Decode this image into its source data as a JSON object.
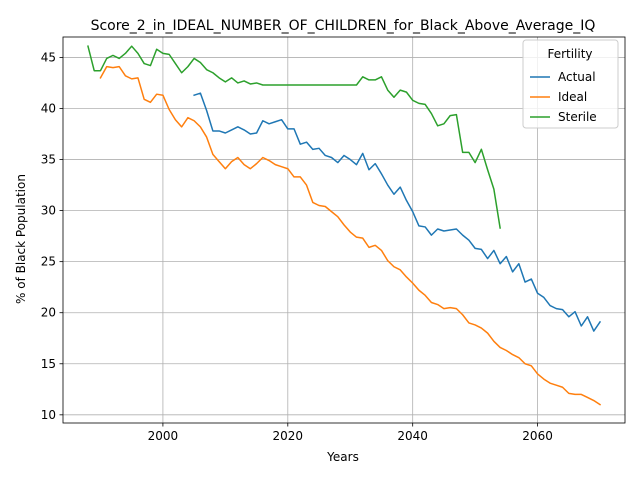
{
  "chart_data": {
    "type": "line",
    "title": "Score_2_in_IDEAL_NUMBER_OF_CHILDREN_for_Black_Above_Average_IQ",
    "xlabel": "Years",
    "ylabel": "% of Black Population",
    "xlim": [
      1984,
      2074
    ],
    "ylim": [
      9.2,
      47.0
    ],
    "xticks": [
      2000,
      2020,
      2040,
      2060
    ],
    "yticks": [
      10,
      15,
      20,
      25,
      30,
      35,
      40,
      45
    ],
    "grid": true,
    "legend": {
      "title": "Fertility",
      "placement": "top-right"
    },
    "series": [
      {
        "name": "Actual",
        "color": "#1f77b4",
        "x": [
          2005,
          2006,
          2007,
          2008,
          2009,
          2010,
          2011,
          2012,
          2013,
          2014,
          2015,
          2016,
          2017,
          2018,
          2019,
          2020,
          2021,
          2022,
          2023,
          2024,
          2025,
          2026,
          2027,
          2028,
          2029,
          2030,
          2031,
          2032,
          2033,
          2034,
          2035,
          2036,
          2037,
          2038,
          2039,
          2040,
          2041,
          2042,
          2043,
          2044,
          2045,
          2046,
          2047,
          2048,
          2049,
          2050,
          2051,
          2052,
          2053,
          2054,
          2055,
          2056,
          2057,
          2058,
          2059,
          2060,
          2061,
          2062,
          2063,
          2064,
          2065,
          2066,
          2067,
          2068,
          2069,
          2070
        ],
        "y": [
          41.3,
          41.5,
          39.8,
          37.8,
          37.8,
          37.6,
          37.9,
          38.2,
          37.9,
          37.5,
          37.6,
          38.8,
          38.5,
          38.7,
          38.9,
          38.0,
          38.0,
          36.5,
          36.7,
          36.0,
          36.1,
          35.4,
          35.2,
          34.7,
          35.4,
          35.0,
          34.5,
          35.6,
          34.0,
          34.6,
          33.6,
          32.5,
          31.6,
          32.3,
          31.0,
          29.9,
          28.5,
          28.4,
          27.6,
          28.2,
          28.0,
          28.1,
          28.2,
          27.6,
          27.1,
          26.3,
          26.2,
          25.3,
          26.1,
          24.8,
          25.5,
          24.0,
          24.8,
          23.0,
          23.3,
          21.9,
          21.5,
          20.7,
          20.4,
          20.3,
          19.6,
          20.1,
          18.7,
          19.6,
          18.2,
          19.1
        ]
      },
      {
        "name": "Ideal",
        "color": "#ff7f0e",
        "x": [
          1990,
          1991,
          1992,
          1993,
          1994,
          1995,
          1996,
          1997,
          1998,
          1999,
          2000,
          2001,
          2002,
          2003,
          2004,
          2005,
          2006,
          2007,
          2008,
          2009,
          2010,
          2011,
          2012,
          2013,
          2014,
          2015,
          2016,
          2017,
          2018,
          2019,
          2020,
          2021,
          2022,
          2023,
          2024,
          2025,
          2026,
          2027,
          2028,
          2029,
          2030,
          2031,
          2032,
          2033,
          2034,
          2035,
          2036,
          2037,
          2038,
          2039,
          2040,
          2041,
          2042,
          2043,
          2044,
          2045,
          2046,
          2047,
          2048,
          2049,
          2050,
          2051,
          2052,
          2053,
          2054,
          2055,
          2056,
          2057,
          2058,
          2059,
          2060,
          2061,
          2062,
          2063,
          2064,
          2065,
          2066,
          2067,
          2068,
          2069,
          2070
        ],
        "y": [
          43.0,
          44.1,
          44.0,
          44.1,
          43.2,
          42.9,
          43.0,
          40.9,
          40.6,
          41.4,
          41.3,
          39.9,
          38.9,
          38.2,
          39.1,
          38.8,
          38.2,
          37.2,
          35.5,
          34.8,
          34.1,
          34.8,
          35.2,
          34.5,
          34.1,
          34.6,
          35.2,
          34.9,
          34.5,
          34.3,
          34.1,
          33.3,
          33.3,
          32.5,
          30.8,
          30.5,
          30.4,
          29.9,
          29.4,
          28.6,
          27.9,
          27.4,
          27.3,
          26.4,
          26.6,
          26.1,
          25.1,
          24.5,
          24.2,
          23.5,
          22.9,
          22.2,
          21.7,
          21.0,
          20.8,
          20.4,
          20.5,
          20.4,
          19.8,
          19.0,
          18.8,
          18.5,
          18.0,
          17.2,
          16.6,
          16.3,
          15.9,
          15.6,
          15.0,
          14.8,
          14.0,
          13.5,
          13.1,
          12.9,
          12.7,
          12.1,
          12.0,
          12.0,
          11.7,
          11.4,
          11.0
        ]
      },
      {
        "name": "Sterile",
        "color": "#2ca02c",
        "x": [
          1988,
          1989,
          1990,
          1991,
          1992,
          1993,
          1994,
          1995,
          1996,
          1997,
          1998,
          1999,
          2000,
          2001,
          2002,
          2003,
          2004,
          2005,
          2006,
          2007,
          2008,
          2009,
          2010,
          2011,
          2012,
          2013,
          2014,
          2015,
          2016,
          2017,
          2018,
          2019,
          2020,
          2021,
          2022,
          2023,
          2024,
          2025,
          2026,
          2027,
          2028,
          2029,
          2030,
          2031,
          2032,
          2033,
          2034,
          2035,
          2036,
          2037,
          2038,
          2039,
          2040,
          2041,
          2042,
          2043,
          2044,
          2045,
          2046,
          2047,
          2048,
          2049,
          2050,
          2051,
          2052,
          2053,
          2054
        ],
        "y": [
          46.1,
          43.7,
          43.7,
          44.9,
          45.2,
          44.9,
          45.4,
          46.1,
          45.4,
          44.4,
          44.2,
          45.8,
          45.4,
          45.3,
          44.4,
          43.5,
          44.1,
          44.9,
          44.5,
          43.8,
          43.5,
          43.0,
          42.6,
          43.0,
          42.5,
          42.7,
          42.4,
          42.5,
          42.3,
          42.3,
          42.3,
          42.3,
          42.3,
          42.3,
          42.3,
          42.3,
          42.3,
          42.3,
          42.3,
          42.3,
          42.3,
          42.3,
          42.3,
          42.3,
          43.1,
          42.8,
          42.8,
          43.1,
          41.8,
          41.1,
          41.8,
          41.6,
          40.8,
          40.5,
          40.4,
          39.5,
          38.3,
          38.5,
          39.3,
          39.4,
          35.7,
          35.7,
          34.7,
          36.0,
          34.0,
          32.1,
          28.3
        ]
      }
    ]
  }
}
